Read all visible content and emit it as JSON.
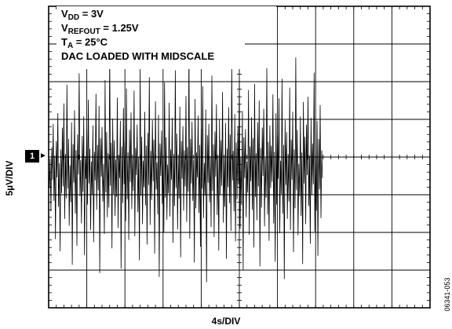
{
  "chart_data": {
    "type": "line",
    "title_lines": [
      {
        "main": "V",
        "sub": "DD",
        "rest": " = 3V"
      },
      {
        "main": "V",
        "sub": "REFOUT",
        "rest": " = 1.25V"
      },
      {
        "main": "T",
        "sub": "A",
        "rest": " = 25°C"
      },
      {
        "main": "DAC LOADED WITH MIDSCALE",
        "sub": "",
        "rest": ""
      }
    ],
    "xlabel": "4s/DIV",
    "ylabel": "5µV/DIV",
    "channel_marker": "1",
    "figure_id": "06341-053",
    "x_divisions": 10,
    "y_divisions": 8,
    "xlim": [
      0,
      40
    ],
    "ylim": [
      -20,
      20
    ],
    "grid": true,
    "series": [
      {
        "color": "#000000",
        "x_step_s": 0.08,
        "values": [
          0.4,
          -2.1,
          1.8,
          -5.2,
          3.3,
          -1.0,
          6.4,
          -3.8,
          2.2,
          -8.9,
          4.1,
          -0.7,
          7.8,
          -4.6,
          1.2,
          -10.5,
          3.0,
          -2.8,
          5.9,
          -1.9,
          9.1,
          -6.2,
          2.4,
          -3.5,
          11.6,
          -2.2,
          4.4,
          -7.1,
          0.9,
          -4.0,
          6.6,
          -12.3,
          3.7,
          -1.4,
          8.2,
          -5.5,
          2.9,
          -9.8,
          5.0,
          -0.3,
          13.1,
          -3.2,
          1.6,
          -6.8,
          4.8,
          -2.6,
          7.4,
          -11.0,
          2.1,
          -0.9,
          5.7,
          -4.3,
          9.6,
          -1.5,
          3.1,
          -7.7,
          1.4,
          -3.0,
          6.2,
          -9.3,
          2.7,
          -1.1,
          10.4,
          -5.0,
          3.6,
          -2.4,
          8.8,
          -13.4,
          4.5,
          -0.6,
          6.0,
          -3.9,
          1.1,
          -8.2,
          12.2,
          -2.7,
          5.3,
          -6.0,
          2.5,
          -4.7,
          15.8,
          -1.8,
          3.9,
          -10.1,
          7.1,
          -2.9,
          4.2,
          -5.8,
          1.7,
          -3.3,
          9.9,
          -7.4,
          2.3,
          -0.8,
          6.8,
          -12.8,
          3.4,
          -4.1,
          8.5,
          -1.6,
          4.0,
          -6.5,
          11.1,
          -3.6,
          2.6,
          -9.0,
          5.6,
          -1.3,
          7.9,
          -4.9,
          1.9,
          -2.5,
          10.8,
          -8.5,
          3.2,
          -0.4,
          6.3,
          -5.3,
          2.0,
          -11.7,
          14.0,
          -3.1,
          4.7,
          -6.9,
          1.5,
          -2.0,
          8.0,
          -4.4,
          3.5,
          -9.6,
          5.2,
          -1.7,
          12.6,
          -7.0,
          2.8,
          -3.7,
          6.9,
          -1.2,
          4.3,
          -10.8,
          9.4,
          -2.3,
          1.3,
          -5.6,
          7.6,
          -13.9,
          3.8,
          -0.5,
          5.5,
          -4.2,
          2.2,
          -8.0,
          11.9,
          -3.4,
          4.6,
          -6.3,
          1.0,
          -2.8,
          9.2,
          -5.9,
          3.0,
          -1.0,
          7.2,
          -9.4,
          2.4,
          -4.5,
          13.5,
          -2.1,
          5.1,
          -7.6,
          1.8,
          -3.5,
          8.7,
          -11.3,
          4.1,
          -0.9,
          6.1,
          -5.1,
          2.9,
          -1.9,
          10.1,
          -6.6,
          3.3,
          -2.6,
          16.9,
          -8.8,
          4.4,
          -1.5,
          6.7,
          -3.8,
          1.6,
          -12.0,
          9.7,
          -4.8,
          2.6,
          -0.7,
          7.5,
          -5.4,
          3.6,
          -9.9,
          5.8,
          -2.2,
          11.4,
          -6.1,
          1.2,
          -3.1,
          8.3,
          -14.6,
          4.9,
          -1.4,
          6.4,
          -4.0,
          2.1,
          -7.3,
          12.8,
          -2.5,
          3.7,
          -8.6,
          5.4,
          -0.6,
          9.0,
          -5.7,
          2.3,
          -10.4,
          7.0,
          -3.0,
          4.2,
          -1.8,
          10.6,
          -6.7,
          1.7,
          -4.6,
          6.5,
          -11.5,
          3.1,
          -2.0,
          8.6,
          -4.1,
          5.0,
          -7.8,
          14.3,
          -1.1,
          2.8,
          -5.2,
          7.7,
          -9.2,
          3.9,
          -3.6,
          6.0,
          -1.6,
          12.1,
          -7.5,
          2.0,
          -4.4,
          8.1,
          -13.0,
          4.6,
          -0.8,
          5.7,
          -6.0,
          1.4,
          -2.7,
          10.9,
          -8.3,
          3.4,
          -1.2,
          7.3,
          -5.0,
          4.5,
          -10.0,
          11.7,
          -3.3,
          2.5,
          -6.4,
          6.6,
          -1.9,
          9.5,
          -12.5,
          3.2,
          -4.7,
          5.9,
          -0.5,
          8.4,
          -7.2,
          1.9,
          -3.4,
          13.8,
          -5.6,
          4.0,
          -9.1,
          6.2,
          -2.1,
          3.5,
          -1.3,
          10.3,
          -6.8,
          2.7,
          -11.9,
          7.8,
          -4.3,
          4.8,
          -0.9,
          9.8,
          -8.1,
          1.5,
          -2.9,
          12.4,
          -5.5,
          3.6,
          -14.2,
          6.9,
          -1.7,
          5.3,
          -6.2,
          2.4,
          -3.9,
          11.2,
          -7.7,
          4.3,
          -1.0,
          8.0,
          -10.6,
          3.0,
          -4.8,
          15.2,
          -2.4,
          5.6,
          -8.4,
          1.1,
          -3.2,
          7.4,
          -5.8,
          2.6,
          -12.2,
          9.3,
          -1.5,
          4.7,
          -6.9,
          6.3,
          -0.4,
          10.0,
          -4.5,
          2.2,
          -9.5,
          7.2,
          -3.0,
          3.8,
          -1.6,
          13.2,
          -7.9,
          1.8,
          -5.1,
          6.8,
          -11.1,
          4.4,
          -2.3,
          8.9,
          -6.1,
          2.9,
          -0.8
        ]
      }
    ]
  }
}
